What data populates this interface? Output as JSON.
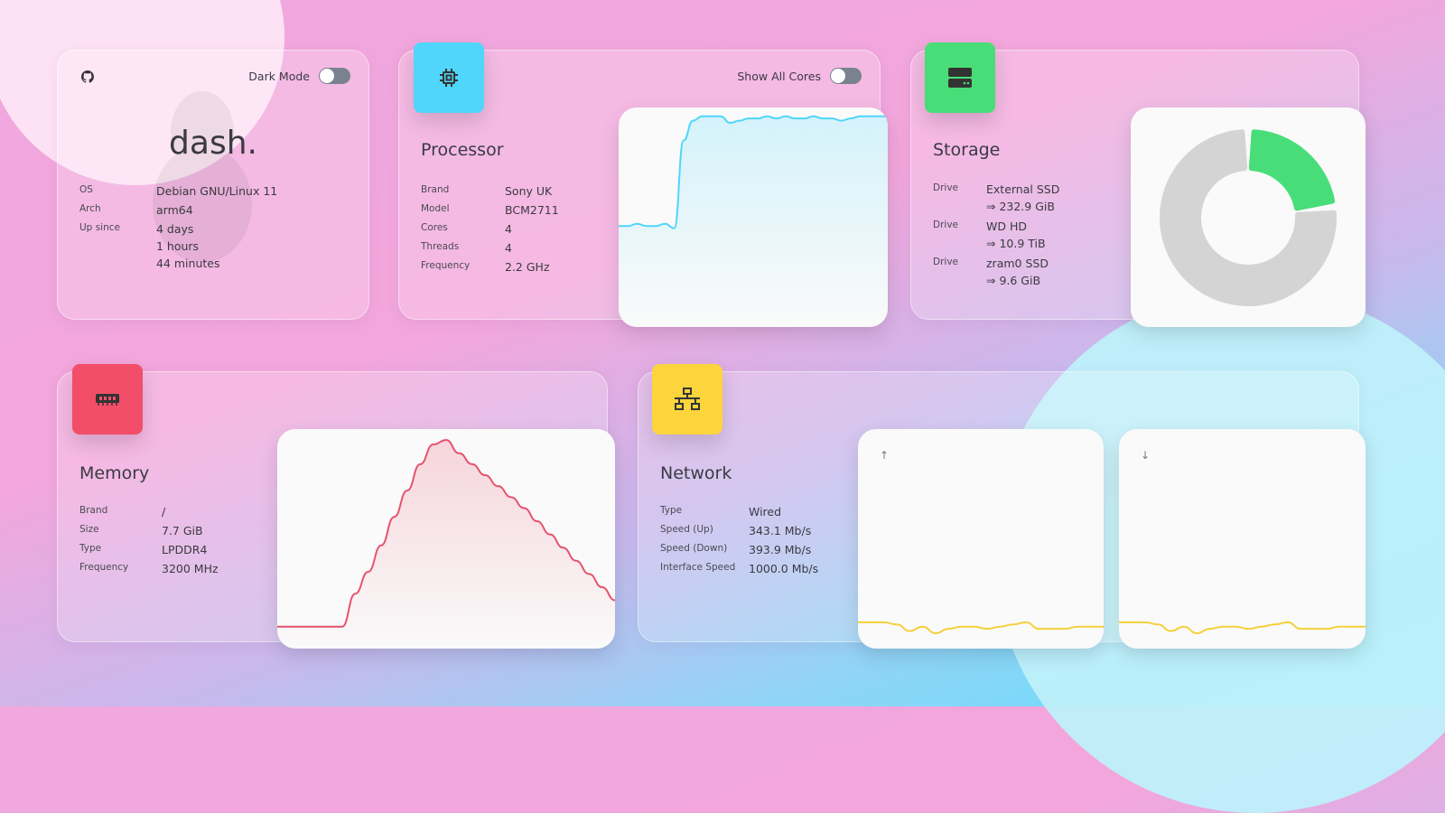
{
  "system": {
    "brand": "dash.",
    "dark_mode_label": "Dark Mode",
    "dark_mode_on": false,
    "rows": [
      {
        "k": "OS",
        "v": "Debian GNU/Linux 11"
      },
      {
        "k": "Arch",
        "v": "arm64"
      },
      {
        "k": "Up since",
        "v": "4 days"
      }
    ],
    "uptime_extra": [
      "1 hours",
      "44 minutes"
    ],
    "icons": [
      "github-icon",
      "linux-tux-icon"
    ]
  },
  "processor": {
    "title": "Processor",
    "show_all_cores_label": "Show All Cores",
    "show_all_cores_on": false,
    "icon": "cpu-chip-icon",
    "accent": "#4fd6fa",
    "rows": [
      {
        "k": "Brand",
        "v": "Sony UK"
      },
      {
        "k": "Model",
        "v": "BCM2711"
      },
      {
        "k": "Cores",
        "v": "4"
      },
      {
        "k": "Threads",
        "v": "4"
      },
      {
        "k": "Frequency",
        "v": "2.2 GHz"
      }
    ]
  },
  "storage": {
    "title": "Storage",
    "icon": "server-drive-icon",
    "accent": "#48dd78",
    "rows": [
      {
        "k": "Drive",
        "name": "External SSD",
        "size": "⇒ 232.9 GiB"
      },
      {
        "k": "Drive",
        "name": "WD HD",
        "size": "⇒ 10.9 TiB"
      },
      {
        "k": "Drive",
        "name": "zram0 SSD",
        "size": "⇒ 9.6 GiB"
      }
    ]
  },
  "memory": {
    "title": "Memory",
    "icon": "ram-icon",
    "accent": "#f24e6a",
    "rows": [
      {
        "k": "Brand",
        "v": "/"
      },
      {
        "k": "Size",
        "v": "7.7 GiB"
      },
      {
        "k": "Type",
        "v": "LPDDR4"
      },
      {
        "k": "Frequency",
        "v": "3200 MHz"
      }
    ]
  },
  "network": {
    "title": "Network",
    "icon": "network-icon",
    "accent": "#fcd43c",
    "up_arrow": "↑",
    "down_arrow": "↓",
    "rows": [
      {
        "k": "Type",
        "v": "Wired"
      },
      {
        "k": "Speed (Up)",
        "v": "343.1 Mb/s"
      },
      {
        "k": "Speed (Down)",
        "v": "393.9 Mb/s"
      },
      {
        "k": "Interface Speed",
        "v": "1000.0 Mb/s"
      }
    ]
  },
  "chart_data": [
    {
      "type": "area",
      "name": "cpu-load",
      "ylim": [
        0,
        100
      ],
      "color": "#4fd6fa",
      "values": [
        46,
        46,
        47,
        46,
        46,
        47,
        45,
        85,
        94,
        96,
        96,
        96,
        93,
        94,
        95,
        95,
        96,
        95,
        96,
        95,
        95,
        96,
        95,
        95,
        94,
        95,
        96,
        96,
        96,
        96
      ]
    },
    {
      "type": "pie",
      "name": "storage-usage",
      "slices": [
        {
          "label": "used",
          "value": 23,
          "color": "#48dd78"
        },
        {
          "label": "free",
          "value": 77,
          "color": "#d4d4d4"
        }
      ]
    },
    {
      "type": "area",
      "name": "memory-usage",
      "ylim": [
        0,
        100
      ],
      "color": "#e6536e",
      "values": [
        10,
        10,
        10,
        10,
        10,
        10,
        25,
        35,
        47,
        60,
        72,
        84,
        93,
        95,
        89,
        84,
        79,
        74,
        69,
        64,
        58,
        52,
        46,
        40,
        34,
        28,
        22
      ]
    },
    {
      "type": "line",
      "name": "network-up",
      "ylim": [
        0,
        100
      ],
      "color": "#f5d03a",
      "values": [
        12,
        12,
        12,
        11,
        8,
        10,
        7,
        9,
        10,
        10,
        9,
        10,
        11,
        12,
        9,
        9,
        9,
        10,
        10,
        10
      ]
    },
    {
      "type": "line",
      "name": "network-down",
      "ylim": [
        0,
        100
      ],
      "color": "#f5d03a",
      "values": [
        12,
        12,
        12,
        11,
        8,
        10,
        7,
        9,
        10,
        10,
        9,
        10,
        11,
        12,
        9,
        9,
        9,
        10,
        10,
        10
      ]
    }
  ]
}
